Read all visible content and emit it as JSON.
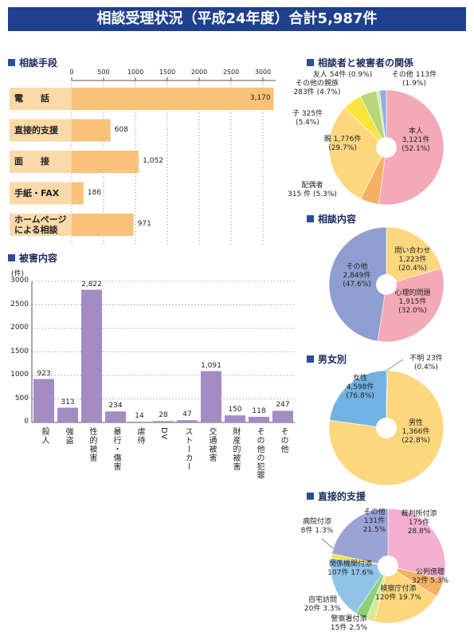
{
  "title": "相談受理状況（平成24年度）合計5,987件",
  "chart_data": [
    {
      "type": "bar",
      "orientation": "horizontal",
      "title": "相談手段",
      "categories": [
        "電　　話",
        "直接的支援",
        "面　　接",
        "手紙・FAX",
        "ホームページ\nによる相談"
      ],
      "values": [
        3170,
        608,
        1052,
        186,
        971
      ],
      "value_labels": [
        "3,170",
        "608",
        "1,052",
        "186",
        "971"
      ],
      "color": "#f8c27a",
      "xlim": [
        0,
        3200
      ],
      "xticks": [
        0,
        500,
        1000,
        1500,
        2000,
        2500,
        3000
      ],
      "grid": true
    },
    {
      "type": "bar",
      "orientation": "vertical",
      "title": "被害内容",
      "y_label": "(件)",
      "categories": [
        "殺人",
        "強盗",
        "性的被害",
        "暴行・傷害",
        "虐待",
        "DV",
        "ストーカー",
        "交通被害",
        "財産的被害",
        "その他の犯罪",
        "その他"
      ],
      "values": [
        923,
        313,
        2822,
        234,
        14,
        28,
        47,
        1091,
        150,
        118,
        247
      ],
      "value_labels": [
        "923",
        "313",
        "2,822",
        "234",
        "14",
        "28",
        "47",
        "1,091",
        "150",
        "118",
        "247"
      ],
      "color": "#a48bc4",
      "ylim": [
        0,
        3000
      ],
      "yticks": [
        0,
        500,
        1000,
        1500,
        2000,
        2500,
        3000
      ],
      "grid": true
    },
    {
      "type": "pie",
      "title": "相談者と被害者の関係",
      "categories": [
        "本人",
        "配偶者",
        "親",
        "子",
        "その他の親族",
        "友人",
        "その他"
      ],
      "values": [
        3121,
        315,
        1776,
        325,
        283,
        54,
        113
      ],
      "value_labels": [
        "3,121件\n(52.1%)",
        "315 件 (5.3%)",
        "1,776件\n(29.7%)",
        "325件\n(5.4%)",
        "283件 (4.7%)",
        "54件 (0.9%)",
        "113件 (1.9%)"
      ],
      "colors": [
        "#f4a9b8",
        "#f5b062",
        "#fdd77e",
        "#f9e43c",
        "#b7d67a",
        "#dbe8a4",
        "#8fb0de"
      ]
    },
    {
      "type": "pie",
      "title": "相談内容",
      "categories": [
        "問い合わせ",
        "心理的問題",
        "その他"
      ],
      "values": [
        1223,
        1915,
        2849
      ],
      "value_labels": [
        "1,223件\n(20.4%)",
        "1,915件\n(32.0%)",
        "2,849件\n(47.6%)"
      ],
      "colors": [
        "#fdd77e",
        "#f4a9b8",
        "#8f9ed0"
      ]
    },
    {
      "type": "pie",
      "title": "男女別",
      "categories": [
        "不明",
        "女性",
        "男性"
      ],
      "values": [
        23,
        4598,
        1366
      ],
      "value_labels": [
        "23件 (0.4%)",
        "4,598件\n(76.8%)",
        "1,366件\n(22.8%)"
      ],
      "colors": [
        "#8f9ed0",
        "#fdd77e",
        "#73b1e2"
      ]
    },
    {
      "type": "pie",
      "title": "直接的支援",
      "categories": [
        "裁判所付添",
        "公判傍聴",
        "検察庁付添",
        "警察署付添",
        "自宅訪問",
        "関係機関付添",
        "病院付添",
        "その他"
      ],
      "values": [
        175,
        32,
        120,
        15,
        20,
        107,
        8,
        131
      ],
      "value_labels": [
        "175件\n28.8%",
        "32件 5.3%",
        "120件 19.7%",
        "15件 2.5%",
        "20件 3.3%",
        "107件 17.6%",
        "8件 1.3%",
        "131件\n21.5%"
      ],
      "colors": [
        "#f4b0d0",
        "#f5b062",
        "#fdd77e",
        "#d6e89a",
        "#8fcf7a",
        "#8fc4e8",
        "#f9e43c",
        "#9aa3d6"
      ]
    }
  ]
}
